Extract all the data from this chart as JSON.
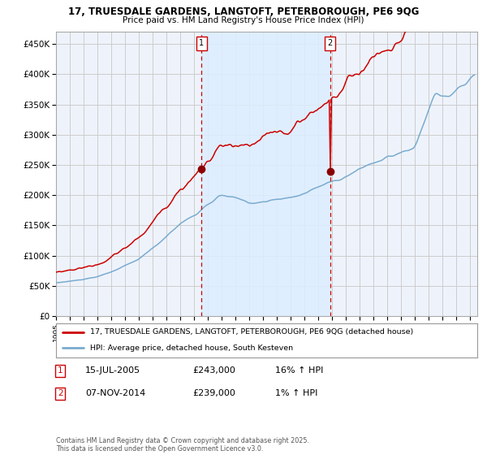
{
  "title1": "17, TRUESDALE GARDENS, LANGTOFT, PETERBOROUGH, PE6 9QG",
  "title2": "Price paid vs. HM Land Registry's House Price Index (HPI)",
  "line1_label": "17, TRUESDALE GARDENS, LANGTOFT, PETERBOROUGH, PE6 9QG (detached house)",
  "line2_label": "HPI: Average price, detached house, South Kesteven",
  "purchase1_date": "15-JUL-2005",
  "purchase1_price": 243000,
  "purchase1_hpi_note": "16% ↑ HPI",
  "purchase2_date": "07-NOV-2014",
  "purchase2_price": 239000,
  "purchase2_hpi_note": "1% ↑ HPI",
  "purchase1_year": 2005.54,
  "purchase2_year": 2014.85,
  "line1_color": "#cc0000",
  "line2_color": "#7aabcf",
  "shade_color": "#ddeeff",
  "vline_color": "#cc0000",
  "point_color": "#8b0000",
  "background_color": "#ffffff",
  "grid_color": "#cccccc",
  "plot_bg_color": "#eef3fb",
  "ylim": [
    0,
    470000
  ],
  "yticks": [
    0,
    50000,
    100000,
    150000,
    200000,
    250000,
    300000,
    350000,
    400000,
    450000
  ],
  "ytick_labels": [
    "£0",
    "£50K",
    "£100K",
    "£150K",
    "£200K",
    "£250K",
    "£300K",
    "£350K",
    "£400K",
    "£450K"
  ],
  "footer": "Contains HM Land Registry data © Crown copyright and database right 2025.\nThis data is licensed under the Open Government Licence v3.0.",
  "xlim_start": 1995,
  "xlim_end": 2025.5
}
